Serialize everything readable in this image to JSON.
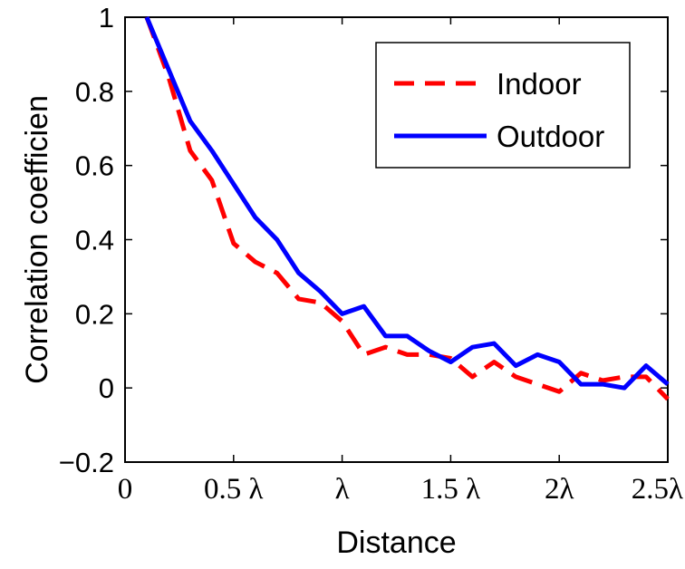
{
  "chart_data": {
    "type": "line",
    "xlabel": "Distance",
    "ylabel": "Correlation coefficien",
    "xlim": [
      0,
      2.5
    ],
    "ylim": [
      -0.2,
      1
    ],
    "yticks": [
      -0.2,
      0,
      0.2,
      0.4,
      0.6,
      0.8,
      1
    ],
    "ytick_labels": [
      "−0.2",
      "0",
      "0.2",
      "0.4",
      "0.6",
      "0.8",
      "1"
    ],
    "xticks": [
      0,
      0.5,
      1,
      1.5,
      2,
      2.5
    ],
    "xtick_labels": [
      "0",
      "0.5 λ",
      "λ",
      "1.5 λ",
      "2λ",
      "2.5λ"
    ],
    "grid": false,
    "legend_position": "top-right",
    "series": [
      {
        "name": "Indoor",
        "color": "#ff0000",
        "style": "dashed",
        "x": [
          0.1,
          0.2,
          0.3,
          0.4,
          0.5,
          0.6,
          0.7,
          0.8,
          0.9,
          1.0,
          1.1,
          1.2,
          1.3,
          1.4,
          1.5,
          1.6,
          1.7,
          1.8,
          1.9,
          2.0,
          2.1,
          2.2,
          2.3,
          2.4,
          2.5
        ],
        "values": [
          1.0,
          0.84,
          0.64,
          0.56,
          0.39,
          0.34,
          0.31,
          0.24,
          0.23,
          0.18,
          0.09,
          0.11,
          0.09,
          0.09,
          0.08,
          0.03,
          0.07,
          0.03,
          0.01,
          -0.01,
          0.04,
          0.02,
          0.03,
          0.03,
          -0.03
        ]
      },
      {
        "name": "Outdoor",
        "color": "#0000ff",
        "style": "solid",
        "x": [
          0.1,
          0.2,
          0.3,
          0.4,
          0.5,
          0.6,
          0.7,
          0.8,
          0.9,
          1.0,
          1.1,
          1.2,
          1.3,
          1.4,
          1.5,
          1.6,
          1.7,
          1.8,
          1.9,
          2.0,
          2.1,
          2.2,
          2.3,
          2.4,
          2.5
        ],
        "values": [
          1.0,
          0.86,
          0.72,
          0.64,
          0.55,
          0.46,
          0.4,
          0.31,
          0.26,
          0.2,
          0.22,
          0.14,
          0.14,
          0.1,
          0.07,
          0.11,
          0.12,
          0.06,
          0.09,
          0.07,
          0.01,
          0.01,
          0.0,
          0.06,
          0.01
        ]
      }
    ]
  }
}
